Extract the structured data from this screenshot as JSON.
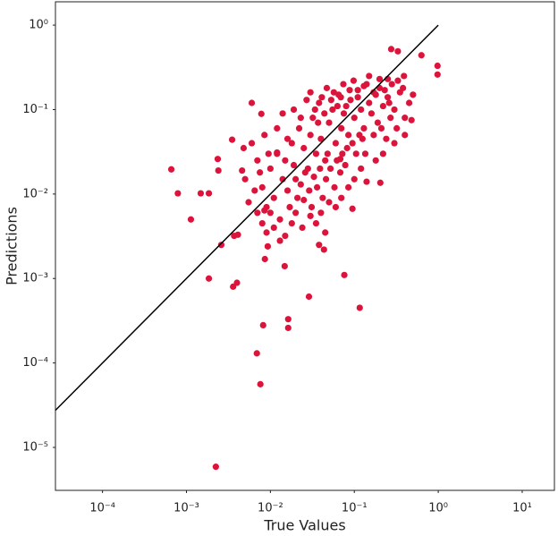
{
  "chart_data": {
    "type": "scatter",
    "x_label": "True Values",
    "y_label": "Predictions",
    "log_x": true,
    "log_y": true,
    "grid": false,
    "color": "#dc143c",
    "xlim": [
      2.75e-05,
      24.2
    ],
    "ylim": [
      3.1e-06,
      1.89
    ],
    "xticks": [
      {
        "value": 0.0001,
        "label": "10⁻⁴"
      },
      {
        "value": 0.001,
        "label": "10⁻³"
      },
      {
        "value": 0.01,
        "label": "10⁻²"
      },
      {
        "value": 0.1,
        "label": "10⁻¹"
      },
      {
        "value": 1,
        "label": "10⁰"
      },
      {
        "value": 10,
        "label": "10¹"
      }
    ],
    "yticks": [
      {
        "value": 1e-05,
        "label": "10⁻⁵"
      },
      {
        "value": 0.0001,
        "label": "10⁻⁴"
      },
      {
        "value": 0.001,
        "label": "10⁻³"
      },
      {
        "value": 0.01,
        "label": "10⁻²"
      },
      {
        "value": 0.1,
        "label": "10⁻¹"
      },
      {
        "value": 1,
        "label": "10⁰"
      }
    ],
    "reference_line": {
      "x": [
        2.75e-05,
        1
      ],
      "y": [
        2.75e-05,
        1
      ],
      "color": "#000000"
    },
    "x": [
      0.00066,
      0.00079,
      0.00113,
      0.00148,
      0.00185,
      0.00185,
      0.00224,
      0.00236,
      0.0024,
      0.0026,
      0.0035,
      0.0036,
      0.004,
      0.0037,
      0.0041,
      0.0046,
      0.0048,
      0.0069,
      0.0076,
      0.0082,
      0.0086,
      0.0093,
      0.0085,
      0.0163,
      0.0163,
      0.0148,
      0.0288,
      0.076,
      0.116,
      0.038,
      0.0435,
      0.204,
      0.275,
      0.33,
      0.63,
      0.98,
      0.98,
      0.39,
      0.48,
      0.25,
      0.0078,
      0.006,
      0.012,
      0.068,
      0.095,
      0.01,
      0.012,
      0.015,
      0.018,
      0.02,
      0.022,
      0.025,
      0.028,
      0.03,
      0.032,
      0.035,
      0.038,
      0.04,
      0.045,
      0.05,
      0.055,
      0.06,
      0.065,
      0.07,
      0.075,
      0.08,
      0.085,
      0.09,
      0.1,
      0.11,
      0.12,
      0.13,
      0.14,
      0.15,
      0.16,
      0.18,
      0.2,
      0.22,
      0.25,
      0.28,
      0.3,
      0.35,
      0.4,
      0.45,
      0.5,
      0.008,
      0.009,
      0.011,
      0.013,
      0.014,
      0.016,
      0.017,
      0.019,
      0.021,
      0.023,
      0.024,
      0.026,
      0.029,
      0.031,
      0.033,
      0.036,
      0.039,
      0.042,
      0.046,
      0.048,
      0.052,
      0.058,
      0.062,
      0.068,
      0.072,
      0.078,
      0.082,
      0.095,
      0.105,
      0.115,
      0.125,
      0.135,
      0.17,
      0.19,
      0.21,
      0.24,
      0.27,
      0.32,
      0.006,
      0.007,
      0.0085,
      0.0095,
      0.012,
      0.014,
      0.016,
      0.019,
      0.023,
      0.027,
      0.03,
      0.034,
      0.037,
      0.041,
      0.044,
      0.047,
      0.053,
      0.057,
      0.063,
      0.069,
      0.074,
      0.088,
      0.098,
      0.11,
      0.13,
      0.15,
      0.17,
      0.2,
      0.23,
      0.26,
      0.33,
      0.38,
      0.005,
      0.0055,
      0.0065,
      0.007,
      0.0075,
      0.008,
      0.009,
      0.01,
      0.011,
      0.013,
      0.015,
      0.018,
      0.02,
      0.025,
      0.03,
      0.035,
      0.04,
      0.045,
      0.05,
      0.06,
      0.07,
      0.085,
      0.1,
      0.12,
      0.14,
      0.18,
      0.22,
      0.3,
      0.4
    ],
    "values": [
      0.0196,
      0.0102,
      0.005,
      0.0102,
      0.0102,
      0.001,
      5.9e-06,
      0.026,
      0.019,
      0.0025,
      0.044,
      0.0008,
      0.00089,
      0.0032,
      0.0033,
      0.019,
      0.035,
      0.00013,
      5.6e-05,
      0.00028,
      0.0017,
      0.0024,
      0.0064,
      0.00033,
      0.00026,
      0.0014,
      0.00061,
      0.0011,
      0.00045,
      0.0025,
      0.0022,
      0.0136,
      0.52,
      0.49,
      0.44,
      0.33,
      0.26,
      0.25,
      0.075,
      0.23,
      0.089,
      0.12,
      0.031,
      0.026,
      0.0067,
      0.02,
      0.03,
      0.025,
      0.04,
      0.015,
      0.06,
      0.035,
      0.02,
      0.05,
      0.08,
      0.03,
      0.12,
      0.045,
      0.025,
      0.07,
      0.1,
      0.04,
      0.15,
      0.06,
      0.09,
      0.11,
      0.05,
      0.13,
      0.08,
      0.17,
      0.1,
      0.06,
      0.2,
      0.12,
      0.09,
      0.15,
      0.18,
      0.11,
      0.14,
      0.2,
      0.1,
      0.16,
      0.08,
      0.12,
      0.15,
      0.012,
      0.007,
      0.009,
      0.005,
      0.015,
      0.011,
      0.007,
      0.022,
      0.009,
      0.013,
      0.004,
      0.018,
      0.011,
      0.007,
      0.016,
      0.012,
      0.02,
      0.009,
      0.015,
      0.03,
      0.02,
      0.012,
      0.025,
      0.018,
      0.03,
      0.022,
      0.035,
      0.04,
      0.03,
      0.05,
      0.045,
      0.03,
      0.05,
      0.07,
      0.06,
      0.045,
      0.08,
      0.06,
      0.04,
      0.025,
      0.05,
      0.03,
      0.06,
      0.09,
      0.045,
      0.1,
      0.08,
      0.13,
      0.16,
      0.1,
      0.07,
      0.14,
      0.09,
      0.18,
      0.13,
      0.16,
      0.11,
      0.14,
      0.2,
      0.17,
      0.22,
      0.14,
      0.19,
      0.25,
      0.16,
      0.23,
      0.17,
      0.12,
      0.22,
      0.18,
      0.015,
      0.008,
      0.011,
      0.006,
      0.018,
      0.0045,
      0.0035,
      0.006,
      0.004,
      0.0028,
      0.0032,
      0.0045,
      0.006,
      0.0085,
      0.0055,
      0.0045,
      0.006,
      0.0035,
      0.008,
      0.007,
      0.009,
      0.012,
      0.015,
      0.02,
      0.014,
      0.025,
      0.03,
      0.04,
      0.05
    ]
  }
}
